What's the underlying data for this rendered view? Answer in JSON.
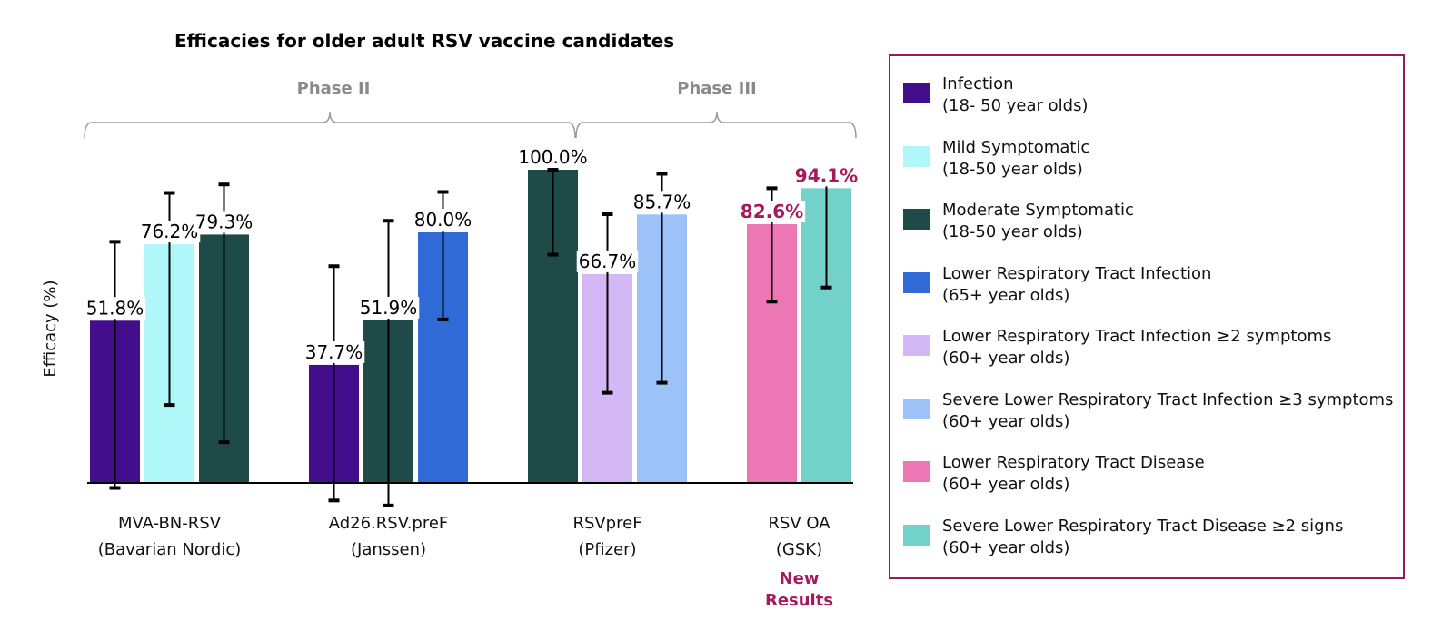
{
  "chart_data": {
    "type": "bar",
    "title": "Efficacies for older adult  RSV vaccine candidates",
    "ylabel": "Efficacy (%)",
    "ylim": [
      0,
      100
    ],
    "phase_labels": [
      "Phase II",
      "Phase III"
    ],
    "groups": [
      {
        "label_line1": "MVA-BN-RSV",
        "label_line2": "(Bavarian Nordic)",
        "bars": [
          {
            "series": 0,
            "value": 51.8,
            "label": "51.8%",
            "ci": [
              -1.6,
              77.0
            ]
          },
          {
            "series": 1,
            "value": 76.2,
            "label": "76.2%",
            "ci": [
              24.9,
              92.6
            ]
          },
          {
            "series": 2,
            "value": 79.3,
            "label": "79.3%",
            "ci": [
              13.0,
              95.3
            ]
          }
        ]
      },
      {
        "label_line1": "Ad26.RSV.preF",
        "label_line2": "(Janssen)",
        "bars": [
          {
            "series": 0,
            "value": 37.7,
            "label": "37.7%",
            "ci": [
              -5.6,
              69.2
            ]
          },
          {
            "series": 2,
            "value": 51.9,
            "label": "51.9%",
            "ci": [
              -7.2,
              83.7
            ]
          },
          {
            "series": 3,
            "value": 80.0,
            "label": "80.0%",
            "ci": [
              52.2,
              92.9
            ]
          }
        ]
      },
      {
        "label_line1": "RSVpreF",
        "label_line2": "(Pfizer)",
        "bars": [
          {
            "series": 2,
            "value": 100.0,
            "label": "100.0%",
            "ci": [
              72.9,
              100.0
            ]
          },
          {
            "series": 4,
            "value": 66.7,
            "label": "66.7%",
            "ci": [
              28.8,
              85.8
            ]
          },
          {
            "series": 5,
            "value": 85.7,
            "label": "85.7%",
            "ci": [
              32.0,
              98.7
            ]
          }
        ]
      },
      {
        "label_line1": "RSV OA",
        "label_line2": "(GSK)",
        "note": "New Results",
        "bars": [
          {
            "series": 6,
            "value": 82.6,
            "label": "82.6%",
            "ci": [
              57.9,
              94.1
            ],
            "highlight": true
          },
          {
            "series": 7,
            "value": 94.1,
            "label": "94.1%",
            "ci": [
              62.4,
              99.9
            ],
            "highlight": true
          }
        ]
      }
    ],
    "series": [
      {
        "name": "Infection",
        "sub": "(18- 50 year olds)",
        "color": "#430e8c"
      },
      {
        "name": "Mild Symptomatic",
        "sub": "(18-50 year olds)",
        "color": "#b0f7f9"
      },
      {
        "name": "Moderate Symptomatic",
        "sub": "(18-50 year olds)",
        "color": "#1e4a48"
      },
      {
        "name": "Lower Respiratory Tract Infection",
        "sub": "(65+ year olds)",
        "color": "#2f6ad6"
      },
      {
        "name": "Lower Respiratory Tract Infection ≥2 symptoms",
        "sub": "(60+ year olds)",
        "color": "#d4b8f6"
      },
      {
        "name": "Severe Lower Respiratory Tract Infection ≥3 symptoms",
        "sub": "(60+ year olds)",
        "color": "#9cc2f8"
      },
      {
        "name": "Lower Respiratory Tract Disease",
        "sub": "(60+ year olds)",
        "color": "#ed77b4"
      },
      {
        "name": "Severe Lower Respiratory Tract Disease ≥2 signs",
        "sub": "(60+ year olds)",
        "color": "#72d1c9"
      }
    ],
    "highlight_color": "#a51a5c",
    "phase_color": "#8a8a8a",
    "legend_border_color": "#9c1a5a"
  }
}
